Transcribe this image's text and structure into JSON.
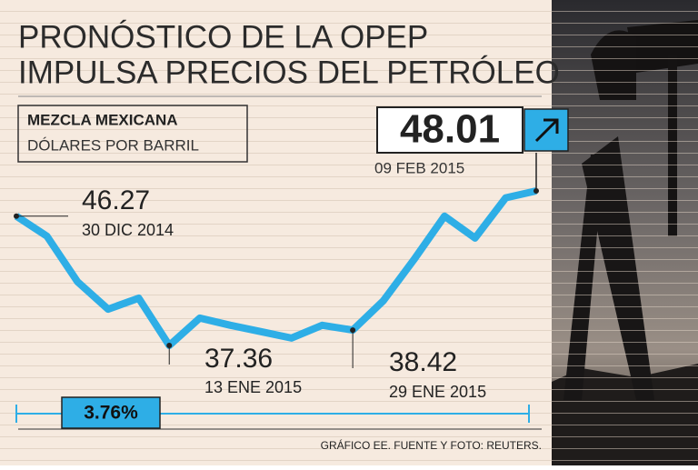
{
  "chart_data": {
    "type": "line",
    "title_lines": [
      "PRONÓSTICO DE LA OPEP",
      "IMPULSA PRECIOS DEL PETRÓLEO"
    ],
    "subtitle": "MEZCLA MEXICANA",
    "unit": "DÓLARES POR BARRIL",
    "color": "#2eaee6",
    "values": [
      46.27,
      44.89,
      41.75,
      39.86,
      40.62,
      37.36,
      39.25,
      38.75,
      38.31,
      37.87,
      38.75,
      38.42,
      40.44,
      43.27,
      46.27,
      44.76,
      47.53,
      48.01
    ],
    "annotations": [
      {
        "index": 0,
        "value": 46.27,
        "date": "30 DIC 2014"
      },
      {
        "index": 5,
        "value": 37.36,
        "date": "13 ENE 2015"
      },
      {
        "index": 11,
        "value": 38.42,
        "date": "29 ENE 2015"
      },
      {
        "index": 17,
        "value": 48.01,
        "date": "09 FEB 2015"
      }
    ],
    "change": {
      "value": 3.76,
      "label": "3.76%"
    },
    "source": "GRÁFICO EE. FUENTE Y FOTO: REUTERS."
  }
}
